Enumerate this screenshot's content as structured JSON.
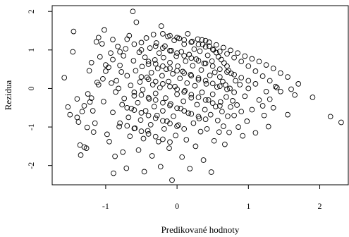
{
  "chart_data": {
    "type": "scatter",
    "xlabel": "Predikované hodnoty",
    "ylabel": "Rezidua",
    "xlim": [
      -1.75,
      2.4
    ],
    "ylim": [
      -2.5,
      2.15
    ],
    "x_ticks": [
      -1,
      0,
      1,
      2
    ],
    "x_tick_labels": [
      "-1",
      "0",
      "1",
      "2"
    ],
    "y_ticks": [
      -2,
      -1,
      0,
      1,
      2
    ],
    "y_tick_labels": [
      "-2",
      "-1",
      "0",
      "1",
      "2"
    ],
    "grid": false,
    "marker": "open-circle",
    "points": [
      [
        -1.58,
        0.28
      ],
      [
        -1.53,
        -0.48
      ],
      [
        -1.5,
        -0.68
      ],
      [
        -1.45,
        1.48
      ],
      [
        -1.46,
        0.95
      ],
      [
        -1.4,
        -0.27
      ],
      [
        -1.38,
        -0.87
      ],
      [
        -1.36,
        -1.47
      ],
      [
        -1.35,
        -1.73
      ],
      [
        -1.33,
        -0.6
      ],
      [
        -1.3,
        -1.52
      ],
      [
        -1.27,
        -1.55
      ],
      [
        -1.26,
        -1.01
      ],
      [
        -1.25,
        -0.14
      ],
      [
        -1.23,
        0.46
      ],
      [
        -1.22,
        -0.35
      ],
      [
        -1.2,
        0.67
      ],
      [
        -1.18,
        -0.58
      ],
      [
        -1.17,
        -1.13
      ],
      [
        -1.15,
        -0.9
      ],
      [
        -1.13,
        1.21
      ],
      [
        -1.12,
        0.16
      ],
      [
        -1.1,
        1.32
      ],
      [
        -1.08,
        0.82
      ],
      [
        -1.05,
        1.16
      ],
      [
        -1.04,
        0.25
      ],
      [
        -1.03,
        -0.34
      ],
      [
        -1.02,
        1.52
      ],
      [
        -1.0,
        0.61
      ],
      [
        -0.98,
        -1.19
      ],
      [
        -0.96,
        0.55
      ],
      [
        -0.95,
        -1.38
      ],
      [
        -0.93,
        0.92
      ],
      [
        -0.92,
        0.14
      ],
      [
        -0.9,
        1.27
      ],
      [
        -0.9,
        -0.62
      ],
      [
        -0.89,
        -2.2
      ],
      [
        -0.87,
        -1.76
      ],
      [
        -0.86,
        -0.09
      ],
      [
        -0.85,
        0.2
      ],
      [
        -0.83,
        1.09
      ],
      [
        -0.82,
        0.0
      ],
      [
        -0.81,
        -0.99
      ],
      [
        -0.8,
        0.6
      ],
      [
        -0.78,
        0.43
      ],
      [
        -0.77,
        -0.42
      ],
      [
        -0.76,
        -1.65
      ],
      [
        -0.75,
        0.85
      ],
      [
        -0.74,
        -0.26
      ],
      [
        -0.72,
        1.03
      ],
      [
        -0.71,
        -2.07
      ],
      [
        -0.7,
        0.33
      ],
      [
        -0.68,
        -0.75
      ],
      [
        -0.67,
        1.37
      ],
      [
        -0.66,
        -1.24
      ],
      [
        -0.65,
        0.08
      ],
      [
        -0.64,
        -0.52
      ],
      [
        -0.62,
        2.0
      ],
      [
        -0.61,
        0.72
      ],
      [
        -0.6,
        -0.19
      ],
      [
        -0.59,
        -1.03
      ],
      [
        -0.58,
        0.46
      ],
      [
        -0.57,
        1.72
      ],
      [
        -0.55,
        -0.37
      ],
      [
        -0.54,
        -1.6
      ],
      [
        -0.53,
        0.94
      ],
      [
        -0.52,
        0.17
      ],
      [
        -0.51,
        -0.82
      ],
      [
        -0.5,
        1.19
      ],
      [
        -0.49,
        0.57
      ],
      [
        -0.48,
        -0.03
      ],
      [
        -0.47,
        -1.3
      ],
      [
        -0.46,
        -2.16
      ],
      [
        -0.45,
        0.81
      ],
      [
        -0.44,
        -0.58
      ],
      [
        -0.43,
        1.31
      ],
      [
        -0.42,
        0.29
      ],
      [
        -0.41,
        -1.1
      ],
      [
        -0.4,
        0.63
      ],
      [
        -0.39,
        -0.27
      ],
      [
        -0.38,
        1.05
      ],
      [
        -0.37,
        -0.94
      ],
      [
        -0.36,
        0.41
      ],
      [
        -0.35,
        -1.75
      ],
      [
        -0.34,
        0.1
      ],
      [
        -0.33,
        1.4
      ],
      [
        -0.32,
        -0.47
      ],
      [
        -0.31,
        0.74
      ],
      [
        -0.3,
        -0.13
      ],
      [
        -0.29,
        1.18
      ],
      [
        -0.28,
        -0.7
      ],
      [
        -0.27,
        0.52
      ],
      [
        -0.26,
        -1.38
      ],
      [
        -0.25,
        0.92
      ],
      [
        -0.24,
        0.02
      ],
      [
        -0.23,
        -2.03
      ],
      [
        -0.22,
        1.62
      ],
      [
        -0.21,
        0.33
      ],
      [
        -0.2,
        -0.58
      ],
      [
        -0.19,
        0.8
      ],
      [
        -0.18,
        -1.05
      ],
      [
        -0.17,
        1.1
      ],
      [
        -0.16,
        -0.25
      ],
      [
        -0.15,
        0.5
      ],
      [
        -0.14,
        -0.85
      ],
      [
        -0.13,
        1.35
      ],
      [
        -0.12,
        0.18
      ],
      [
        -0.11,
        -1.55
      ],
      [
        -0.1,
        0.67
      ],
      [
        -0.09,
        -0.4
      ],
      [
        -0.08,
        0.98
      ],
      [
        -0.07,
        -2.38
      ],
      [
        -0.06,
        0.38
      ],
      [
        -0.05,
        -0.72
      ],
      [
        -0.04,
        1.25
      ],
      [
        -0.03,
        0.05
      ],
      [
        -0.02,
        -1.22
      ],
      [
        -0.01,
        0.84
      ],
      [
        0.0,
        -0.15
      ],
      [
        0.01,
        0.58
      ],
      [
        0.02,
        -0.95
      ],
      [
        0.03,
        1.3
      ],
      [
        0.04,
        0.26
      ],
      [
        0.05,
        -0.52
      ],
      [
        0.06,
        0.95
      ],
      [
        0.07,
        -1.78
      ],
      [
        0.08,
        0.44
      ],
      [
        0.09,
        -0.33
      ],
      [
        0.1,
        1.15
      ],
      [
        0.11,
        -0.06
      ],
      [
        0.12,
        0.71
      ],
      [
        0.13,
        -1.33
      ],
      [
        0.14,
        0.14
      ],
      [
        0.15,
        1.42
      ],
      [
        0.16,
        -0.64
      ],
      [
        0.17,
        0.88
      ],
      [
        0.18,
        -2.08
      ],
      [
        0.19,
        0.36
      ],
      [
        0.2,
        -0.24
      ],
      [
        0.21,
        1.22
      ],
      [
        0.22,
        0.59
      ],
      [
        0.23,
        -0.9
      ],
      [
        0.24,
        1.02
      ],
      [
        0.25,
        0.07
      ],
      [
        0.26,
        -1.5
      ],
      [
        0.27,
        0.76
      ],
      [
        0.28,
        -0.42
      ],
      [
        0.29,
        1.28
      ],
      [
        0.3,
        0.23
      ],
      [
        0.31,
        -0.78
      ],
      [
        0.32,
        0.97
      ],
      [
        0.33,
        -1.12
      ],
      [
        0.34,
        0.48
      ],
      [
        0.35,
        -0.1
      ],
      [
        0.36,
        1.14
      ],
      [
        0.37,
        -1.86
      ],
      [
        0.38,
        0.65
      ],
      [
        0.39,
        -0.55
      ],
      [
        0.4,
        1.24
      ],
      [
        0.41,
        0.12
      ],
      [
        0.42,
        -1.05
      ],
      [
        0.43,
        0.86
      ],
      [
        0.44,
        -0.3
      ],
      [
        0.45,
        1.1
      ],
      [
        0.46,
        0.34
      ],
      [
        0.47,
        -0.68
      ],
      [
        0.48,
        -2.17
      ],
      [
        0.49,
        0.71
      ],
      [
        0.5,
        -0.15
      ],
      [
        0.51,
        1.0
      ],
      [
        0.52,
        -1.36
      ],
      [
        0.53,
        0.42
      ],
      [
        0.54,
        -0.47
      ],
      [
        0.55,
        0.93
      ],
      [
        0.56,
        0.04
      ],
      [
        0.57,
        -0.83
      ],
      [
        0.58,
        0.82
      ],
      [
        0.59,
        -1.13
      ],
      [
        0.6,
        0.3
      ],
      [
        0.61,
        -0.35
      ],
      [
        0.62,
        0.75
      ],
      [
        0.63,
        -0.6
      ],
      [
        0.64,
        0.18
      ],
      [
        0.65,
        -0.98
      ],
      [
        0.66,
        0.66
      ],
      [
        0.67,
        -1.45
      ],
      [
        0.68,
        0.09
      ],
      [
        0.69,
        -0.22
      ],
      [
        0.7,
        0.58
      ],
      [
        0.71,
        -0.72
      ],
      [
        0.72,
        0.47
      ],
      [
        0.73,
        -1.14
      ],
      [
        0.74,
        0.0
      ],
      [
        0.75,
        -0.48
      ],
      [
        0.76,
        0.39
      ],
      [
        0.78,
        -0.32
      ],
      [
        0.8,
        -0.7
      ],
      [
        0.82,
        0.2
      ],
      [
        0.84,
        -0.43
      ],
      [
        0.86,
        -1.0
      ],
      [
        0.88,
        0.1
      ],
      [
        0.9,
        -0.6
      ],
      [
        0.92,
        -1.23
      ],
      [
        0.95,
        -0.2
      ],
      [
        0.98,
        -0.85
      ],
      [
        1.0,
        0.0
      ],
      [
        1.05,
        -0.55
      ],
      [
        1.1,
        -1.15
      ],
      [
        1.15,
        -0.3
      ],
      [
        1.2,
        -0.45
      ],
      [
        1.22,
        -0.7
      ],
      [
        1.25,
        -0.08
      ],
      [
        1.28,
        -0.99
      ],
      [
        1.3,
        -0.28
      ],
      [
        1.35,
        -0.5
      ],
      [
        1.38,
        0.05
      ],
      [
        1.45,
        -0.08
      ],
      [
        1.55,
        -0.68
      ],
      [
        1.6,
        -0.02
      ],
      [
        1.65,
        -0.17
      ],
      [
        2.15,
        -0.73
      ],
      [
        2.3,
        -0.88
      ],
      [
        -0.2,
        1.42
      ],
      [
        -0.1,
        1.37
      ],
      [
        0.0,
        1.32
      ],
      [
        0.1,
        1.26
      ],
      [
        0.2,
        1.2
      ],
      [
        0.3,
        1.14
      ],
      [
        0.4,
        1.08
      ],
      [
        0.5,
        1.02
      ],
      [
        0.6,
        0.96
      ],
      [
        0.7,
        0.9
      ],
      [
        0.8,
        0.8
      ],
      [
        0.9,
        0.7
      ],
      [
        1.0,
        0.58
      ],
      [
        1.1,
        0.45
      ],
      [
        1.2,
        0.32
      ],
      [
        1.3,
        0.2
      ],
      [
        1.4,
        0.02
      ],
      [
        -0.3,
        1.1
      ],
      [
        -0.2,
        1.05
      ],
      [
        -0.1,
        0.98
      ],
      [
        0.0,
        0.92
      ],
      [
        0.1,
        0.85
      ],
      [
        0.2,
        0.79
      ],
      [
        0.3,
        0.72
      ],
      [
        0.4,
        0.65
      ],
      [
        0.5,
        0.58
      ],
      [
        0.6,
        0.5
      ],
      [
        0.7,
        0.43
      ],
      [
        0.8,
        0.36
      ],
      [
        0.9,
        0.28
      ],
      [
        1.0,
        0.2
      ],
      [
        1.1,
        0.12
      ],
      [
        -0.4,
        0.7
      ],
      [
        -0.3,
        0.64
      ],
      [
        -0.2,
        0.58
      ],
      [
        -0.1,
        0.52
      ],
      [
        0.0,
        0.46
      ],
      [
        0.1,
        0.4
      ],
      [
        0.2,
        0.33
      ],
      [
        0.3,
        0.27
      ],
      [
        0.4,
        0.2
      ],
      [
        0.5,
        0.13
      ],
      [
        0.6,
        0.06
      ],
      [
        0.7,
        -0.02
      ],
      [
        0.8,
        -0.1
      ],
      [
        -0.5,
        0.3
      ],
      [
        -0.4,
        0.24
      ],
      [
        -0.3,
        0.18
      ],
      [
        -0.2,
        0.12
      ],
      [
        -0.1,
        0.05
      ],
      [
        0.0,
        -0.02
      ],
      [
        0.1,
        -0.09
      ],
      [
        0.2,
        -0.16
      ],
      [
        0.3,
        -0.23
      ],
      [
        0.4,
        -0.3
      ],
      [
        0.5,
        -0.38
      ],
      [
        0.6,
        -0.45
      ],
      [
        -0.6,
        -0.1
      ],
      [
        -0.5,
        -0.17
      ],
      [
        -0.4,
        -0.24
      ],
      [
        -0.3,
        -0.3
      ],
      [
        -0.2,
        -0.37
      ],
      [
        -0.1,
        -0.44
      ],
      [
        0.0,
        -0.51
      ],
      [
        0.1,
        -0.58
      ],
      [
        0.2,
        -0.66
      ],
      [
        0.3,
        -0.73
      ],
      [
        0.4,
        -0.8
      ],
      [
        -0.7,
        -0.5
      ],
      [
        -0.6,
        -0.56
      ],
      [
        -0.5,
        -0.63
      ],
      [
        -0.4,
        -0.7
      ],
      [
        -0.3,
        -0.77
      ],
      [
        -0.2,
        -0.84
      ],
      [
        -0.1,
        -0.91
      ],
      [
        0.0,
        -0.98
      ],
      [
        0.1,
        -1.05
      ],
      [
        -0.8,
        -0.9
      ],
      [
        -0.7,
        -0.97
      ],
      [
        -0.6,
        -1.04
      ],
      [
        -0.5,
        -1.11
      ],
      [
        -0.4,
        -1.18
      ],
      [
        -0.3,
        -1.25
      ],
      [
        -0.2,
        -1.32
      ],
      [
        -0.1,
        -1.39
      ],
      [
        0.35,
        1.26
      ],
      [
        0.45,
        1.2
      ],
      [
        0.55,
        1.13
      ],
      [
        0.65,
        1.06
      ],
      [
        0.75,
        0.99
      ],
      [
        0.85,
        0.92
      ],
      [
        0.95,
        0.84
      ],
      [
        1.05,
        0.77
      ],
      [
        1.15,
        0.7
      ],
      [
        1.25,
        0.61
      ],
      [
        1.35,
        0.52
      ],
      [
        1.45,
        0.4
      ],
      [
        1.55,
        0.3
      ],
      [
        1.7,
        0.12
      ],
      [
        1.9,
        -0.23
      ],
      [
        -0.7,
        1.28
      ],
      [
        -0.6,
        1.15
      ],
      [
        -0.5,
        1.0
      ],
      [
        -0.8,
        0.95
      ],
      [
        -0.9,
        0.75
      ],
      [
        -1.0,
        0.45
      ],
      [
        -1.1,
        0.1
      ],
      [
        -1.2,
        -0.25
      ],
      [
        -1.3,
        -0.45
      ],
      [
        -1.4,
        -0.75
      ]
    ]
  }
}
